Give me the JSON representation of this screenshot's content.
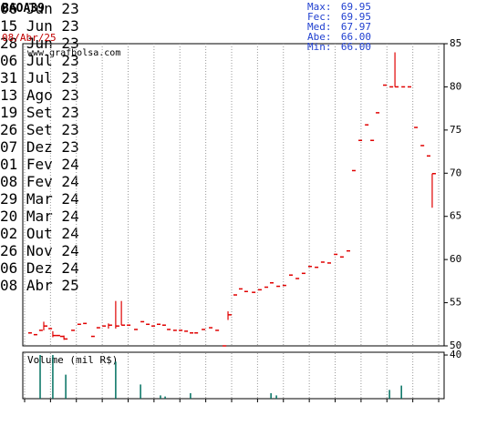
{
  "chart_data": {
    "type": "ohlc",
    "title": "BAOA39",
    "date": "08/Abr/25",
    "watermark": "www.grafbolsa.com",
    "stats": [
      {
        "label": "Max:",
        "value": "69.95"
      },
      {
        "label": "Fec:",
        "value": "69.95"
      },
      {
        "label": "Med:",
        "value": "67.97"
      },
      {
        "label": "Abe:",
        "value": "66.00"
      },
      {
        "label": "Min:",
        "value": "66.00"
      }
    ],
    "color": "#e00000",
    "grid": true,
    "xlim": [
      -0.07,
      16.21
    ],
    "xticks": [
      {
        "value": 0,
        "label": "06 Jun 23"
      },
      {
        "value": 1,
        "label": "15 Jun 23"
      },
      {
        "value": 2,
        "label": "28 Jun 23"
      },
      {
        "value": 3,
        "label": "06 Jul 23"
      },
      {
        "value": 4,
        "label": "31 Jul 23"
      },
      {
        "value": 5,
        "label": "13 Ago 23"
      },
      {
        "value": 6,
        "label": "19 Set 23"
      },
      {
        "value": 7,
        "label": "26 Set 23"
      },
      {
        "value": 8,
        "label": "07 Dez 23"
      },
      {
        "value": 9,
        "label": "01 Fev 24"
      },
      {
        "value": 10,
        "label": "08 Fev 24"
      },
      {
        "value": 11,
        "label": "29 Mar 24"
      },
      {
        "value": 12,
        "label": "20 Mar 24"
      },
      {
        "value": 13,
        "label": "02 Out 24"
      },
      {
        "value": 14,
        "label": "26 Nov 24"
      },
      {
        "value": 15,
        "label": "06 Dez 24"
      },
      {
        "value": 16,
        "label": "08 Abr 25"
      }
    ],
    "ylim": [
      50,
      85
    ],
    "yticks": [
      50,
      55,
      60,
      65,
      70,
      75,
      80,
      85
    ],
    "x": [
      0.14,
      0.35,
      0.56,
      0.74,
      0.92,
      1.09,
      1.23,
      1.37,
      1.52,
      1.8,
      2.04,
      2.26,
      2.57,
      2.78,
      3.0,
      3.24,
      3.52,
      3.74,
      3.95,
      4.23,
      4.48,
      4.69,
      4.9,
      5.11,
      5.32,
      5.5,
      5.74,
      5.96,
      6.17,
      6.38,
      6.56,
      6.84,
      7.12,
      7.37,
      7.65,
      7.86,
      8.07,
      8.28,
      8.49,
      8.78,
      9.02,
      9.27,
      9.48,
      9.73,
      9.97,
      10.22,
      10.47,
      10.71,
      10.96,
      11.21,
      11.45,
      11.7,
      11.95,
      12.19,
      12.44,
      12.65,
      12.9,
      13.15,
      13.36,
      13.57,
      13.85,
      14.1,
      14.31,
      14.56,
      14.8,
      15.05,
      15.3,
      15.54,
      15.75
    ],
    "close": [
      51.5,
      51.3,
      51.8,
      52.3,
      52.0,
      51.2,
      51.2,
      51.1,
      50.8,
      51.8,
      52.5,
      52.6,
      51.1,
      52.1,
      52.3,
      52.4,
      52.3,
      52.4,
      52.4,
      51.9,
      52.8,
      52.5,
      52.3,
      52.5,
      52.4,
      51.9,
      51.8,
      51.8,
      51.7,
      51.5,
      51.5,
      51.9,
      52.1,
      51.8,
      50.0,
      53.6,
      55.9,
      56.6,
      56.3,
      56.2,
      56.5,
      56.8,
      57.3,
      56.9,
      57.0,
      58.2,
      57.8,
      58.4,
      59.2,
      59.1,
      59.7,
      59.6,
      60.6,
      60.3,
      61.0,
      70.3,
      73.8,
      75.6,
      73.8,
      77.0,
      80.2,
      80.0,
      80.0,
      80.0,
      80.0,
      75.3,
      73.2,
      72.0,
      69.95
    ],
    "high": [
      null,
      null,
      null,
      52.8,
      null,
      51.7,
      null,
      null,
      51.2,
      null,
      null,
      null,
      null,
      null,
      null,
      52.6,
      55.2,
      55.2,
      null,
      null,
      null,
      null,
      null,
      null,
      null,
      null,
      null,
      null,
      null,
      null,
      null,
      null,
      null,
      null,
      null,
      54.0,
      null,
      null,
      null,
      null,
      null,
      null,
      null,
      null,
      null,
      null,
      null,
      null,
      null,
      null,
      null,
      null,
      null,
      null,
      null,
      null,
      null,
      null,
      null,
      null,
      null,
      null,
      84.0,
      null,
      null,
      null,
      null,
      null,
      69.95
    ],
    "low": [
      null,
      null,
      null,
      51.8,
      null,
      51.0,
      null,
      null,
      50.7,
      null,
      null,
      null,
      null,
      null,
      null,
      52.0,
      52.0,
      52.4,
      null,
      null,
      null,
      null,
      null,
      null,
      null,
      null,
      null,
      null,
      null,
      null,
      null,
      null,
      null,
      null,
      null,
      53.0,
      null,
      null,
      null,
      null,
      null,
      null,
      null,
      null,
      null,
      null,
      null,
      null,
      null,
      null,
      null,
      null,
      null,
      null,
      null,
      null,
      null,
      null,
      null,
      null,
      null,
      null,
      80.0,
      null,
      null,
      null,
      null,
      null,
      66.0
    ],
    "volume": {
      "label": "Volume (mil R$)",
      "color": "#007060",
      "ylim": [
        0,
        41.7
      ],
      "yticks": [
        40
      ],
      "x": [
        0.6,
        1.09,
        1.59,
        3.52,
        4.48,
        5.25,
        5.43,
        6.41,
        9.52,
        9.73,
        14.1,
        14.56
      ],
      "values": [
        40,
        40,
        22,
        34,
        13,
        3,
        2,
        5,
        5,
        3,
        8,
        12
      ]
    }
  }
}
